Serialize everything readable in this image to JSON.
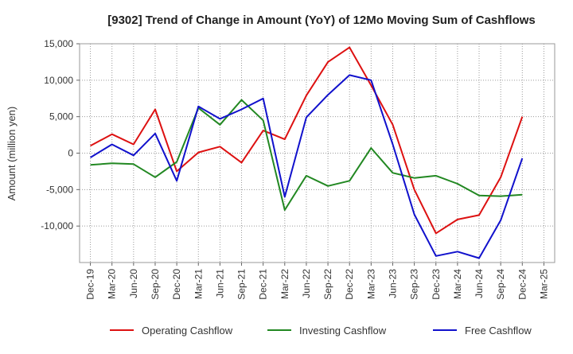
{
  "chart_data": {
    "type": "line",
    "title": "[9302]  Trend of Change in Amount (YoY) of 12Mo Moving Sum of Cashflows",
    "xlabel": "",
    "ylabel": "Amount (million yen)",
    "ylim": [
      -15000,
      15000
    ],
    "yticks": [
      15000,
      10000,
      5000,
      0,
      -5000,
      -10000
    ],
    "ytick_labels": [
      "15,000",
      "10,000",
      "5,000",
      "0",
      "-5,000",
      "-10,000"
    ],
    "categories": [
      "Dec-19",
      "Mar-20",
      "Jun-20",
      "Sep-20",
      "Dec-20",
      "Mar-21",
      "Jun-21",
      "Sep-21",
      "Dec-21",
      "Mar-22",
      "Jun-22",
      "Sep-22",
      "Dec-22",
      "Mar-23",
      "Jun-23",
      "Sep-23",
      "Dec-23",
      "Mar-24",
      "Jun-24",
      "Sep-24",
      "Dec-24",
      "Mar-25"
    ],
    "grid": true,
    "legend_position": "bottom",
    "series": [
      {
        "name": "Operating Cashflow",
        "color": "#dd1111",
        "values": [
          1000,
          2600,
          1200,
          6000,
          -2500,
          100,
          900,
          -1300,
          3100,
          1900,
          7900,
          12500,
          14500,
          9300,
          3900,
          -5000,
          -11000,
          -9100,
          -8500,
          -3300,
          5000,
          null
        ]
      },
      {
        "name": "Investing Cashflow",
        "color": "#228822",
        "values": [
          -1600,
          -1400,
          -1500,
          -3300,
          -1200,
          6200,
          3900,
          7300,
          4500,
          -7800,
          -3100,
          -4500,
          -3800,
          700,
          -2700,
          -3400,
          -3100,
          -4200,
          -5800,
          -5900,
          -5700,
          null
        ]
      },
      {
        "name": "Free Cashflow",
        "color": "#1111cc",
        "values": [
          -600,
          1200,
          -300,
          2700,
          -3800,
          6400,
          4700,
          6000,
          7500,
          -6000,
          4900,
          8000,
          10700,
          10000,
          1200,
          -8400,
          -14100,
          -13500,
          -14400,
          -9200,
          -700,
          null
        ]
      }
    ]
  }
}
